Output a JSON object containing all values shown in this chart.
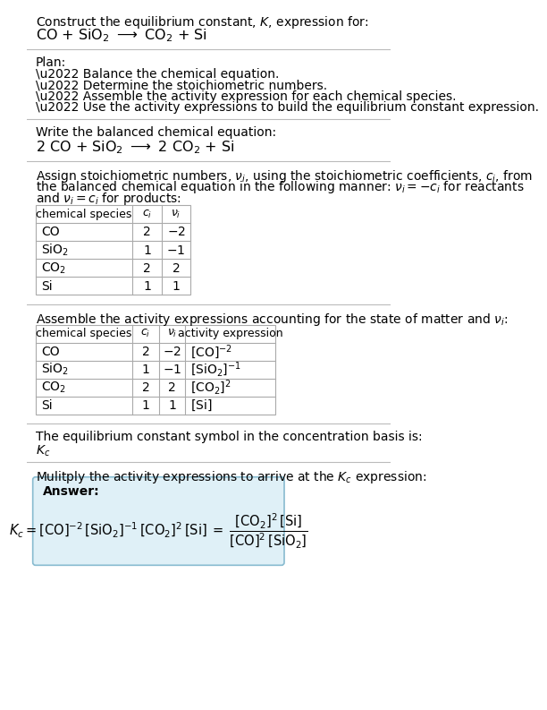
{
  "title_line1": "Construct the equilibrium constant, $K$, expression for:",
  "title_line2": "CO + SiO$_2$ $\\longrightarrow$ CO$_2$ + Si",
  "plan_header": "Plan:",
  "plan_bullets": [
    "\\u2022 Balance the chemical equation.",
    "\\u2022 Determine the stoichiometric numbers.",
    "\\u2022 Assemble the activity expression for each chemical species.",
    "\\u2022 Use the activity expressions to build the equilibrium constant expression."
  ],
  "balanced_header": "Write the balanced chemical equation:",
  "balanced_eq": "2 CO + SiO$_2$ $\\longrightarrow$ 2 CO$_2$ + Si",
  "stoich_intro_lines": [
    "Assign stoichiometric numbers, $\\nu_i$, using the stoichiometric coefficients, $c_i$, from",
    "the balanced chemical equation in the following manner: $\\nu_i = -c_i$ for reactants",
    "and $\\nu_i = c_i$ for products:"
  ],
  "table1_headers": [
    "chemical species",
    "$c_i$",
    "$\\nu_i$"
  ],
  "table1_rows": [
    [
      "CO",
      "2",
      "$-2$"
    ],
    [
      "SiO$_2$",
      "1",
      "$-1$"
    ],
    [
      "CO$_2$",
      "2",
      "2"
    ],
    [
      "Si",
      "1",
      "1"
    ]
  ],
  "activity_intro": "Assemble the activity expressions accounting for the state of matter and $\\nu_i$:",
  "table2_headers": [
    "chemical species",
    "$c_i$",
    "$\\nu_i$",
    "activity expression"
  ],
  "table2_rows": [
    [
      "CO",
      "2",
      "$-2$",
      "$[\\mathrm{CO}]^{-2}$"
    ],
    [
      "SiO$_2$",
      "1",
      "$-1$",
      "$[\\mathrm{SiO_2}]^{-1}$"
    ],
    [
      "CO$_2$",
      "2",
      "2",
      "$[\\mathrm{CO_2}]^2$"
    ],
    [
      "Si",
      "1",
      "1",
      "$[\\mathrm{Si}]$"
    ]
  ],
  "kc_intro": "The equilibrium constant symbol in the concentration basis is:",
  "kc_symbol": "$K_c$",
  "multiply_intro": "Mulitply the activity expressions to arrive at the $K_c$ expression:",
  "answer_label": "Answer:",
  "bg_color": "#ffffff",
  "text_color": "#000000",
  "table_border": "#aaaaaa",
  "answer_box_bg": "#dff0f7",
  "answer_box_border": "#88bbd0",
  "separator_color": "#bbbbbb"
}
